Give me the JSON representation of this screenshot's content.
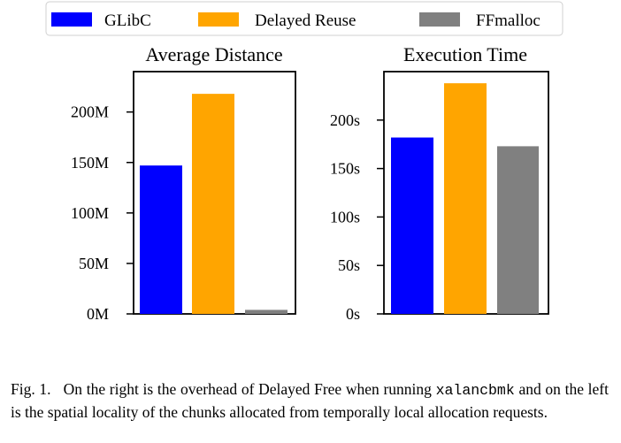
{
  "legend": [
    {
      "label": "GLibC",
      "color": "#0000ff"
    },
    {
      "label": "Delayed Reuse",
      "color": "#ffa500"
    },
    {
      "label": "FFmalloc",
      "color": "#808080"
    }
  ],
  "chart_data": [
    {
      "type": "bar",
      "title": "Average Distance",
      "categories": [
        "GLibC",
        "Delayed Reuse",
        "FFmalloc"
      ],
      "values": [
        147000000,
        218000000,
        4000000
      ],
      "colors": [
        "#0000ff",
        "#ffa500",
        "#808080"
      ],
      "ylim": [
        0,
        240000000
      ],
      "yticks": [
        0,
        50000000,
        100000000,
        150000000,
        200000000
      ],
      "yticklabels": [
        "0M",
        "50M",
        "100M",
        "150M",
        "200M"
      ],
      "xlabel": "",
      "ylabel": ""
    },
    {
      "type": "bar",
      "title": "Execution Time",
      "categories": [
        "GLibC",
        "Delayed Reuse",
        "FFmalloc"
      ],
      "values": [
        182,
        238,
        173
      ],
      "colors": [
        "#0000ff",
        "#ffa500",
        "#808080"
      ],
      "ylim": [
        0,
        250
      ],
      "yticks": [
        0,
        50,
        100,
        150,
        200
      ],
      "yticklabels": [
        "0s",
        "50s",
        "100s",
        "150s",
        "200s"
      ],
      "xlabel": "",
      "ylabel": ""
    }
  ],
  "caption": {
    "label": "Fig. 1.",
    "text_before": "On the right is the overhead of Delayed Free when running ",
    "code": "xalancbmk",
    "text_after": " and on the left is the spatial locality of the chunks allocated from temporally local allocation requests."
  }
}
